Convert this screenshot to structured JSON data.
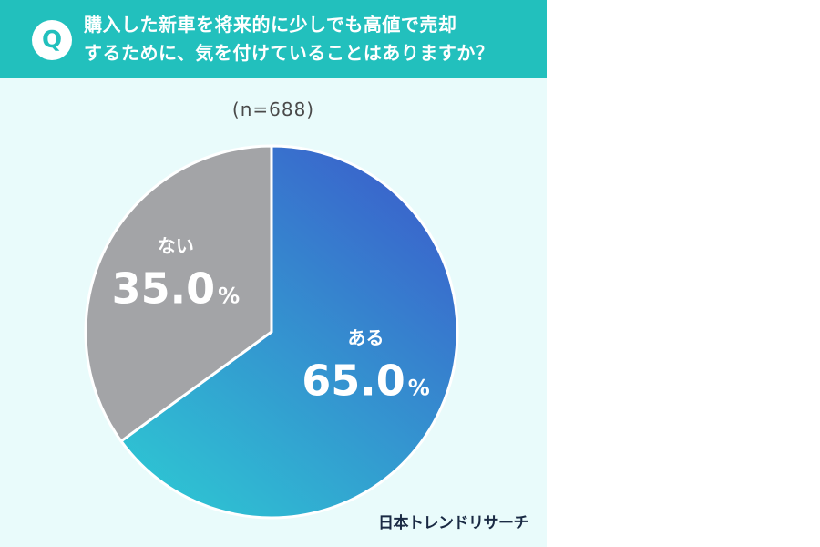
{
  "question": {
    "badge": "Q",
    "line1": "購入した新車を将来的に少しでも高値で売却",
    "line2": "するために、気を付けていることはありますか？"
  },
  "sample_size": "(n=688)",
  "credit": "日本トレンドリサーチ",
  "colors": {
    "header": "#22c0bd",
    "background": "#e9fbfb",
    "yes_gradient_start": "#2ec3d3",
    "yes_gradient_end": "#3a64cc",
    "no": "#a3a4a7"
  },
  "chart_data": {
    "type": "pie",
    "title": "",
    "slices": [
      {
        "label": "ある",
        "value": 65.0,
        "value_text": "65.0",
        "unit": "%"
      },
      {
        "label": "ない",
        "value": 35.0,
        "value_text": "35.0",
        "unit": "%"
      }
    ]
  }
}
